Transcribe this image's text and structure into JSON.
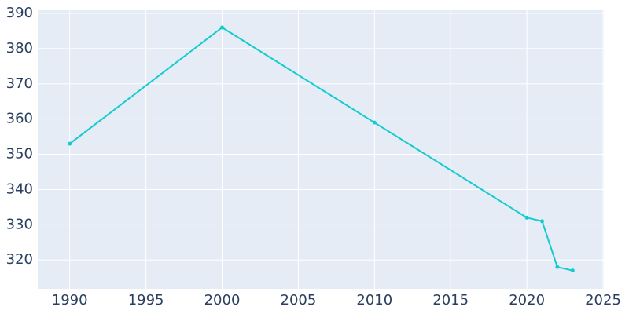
{
  "chart_data": {
    "type": "line",
    "x": [
      1990,
      2000,
      2010,
      2020,
      2021,
      2022,
      2023
    ],
    "series": [
      {
        "color": "#14cbcf",
        "values": [
          353,
          386,
          359,
          332,
          331,
          318,
          317
        ]
      }
    ],
    "xlim": [
      1987.9,
      2025.05
    ],
    "xticks": [
      1990,
      1995,
      2000,
      2005,
      2010,
      2015,
      2020,
      2025
    ],
    "ylim": [
      311.8,
      390.9
    ],
    "yticks": [
      320,
      330,
      340,
      350,
      360,
      370,
      380,
      390
    ],
    "grid": true
  }
}
